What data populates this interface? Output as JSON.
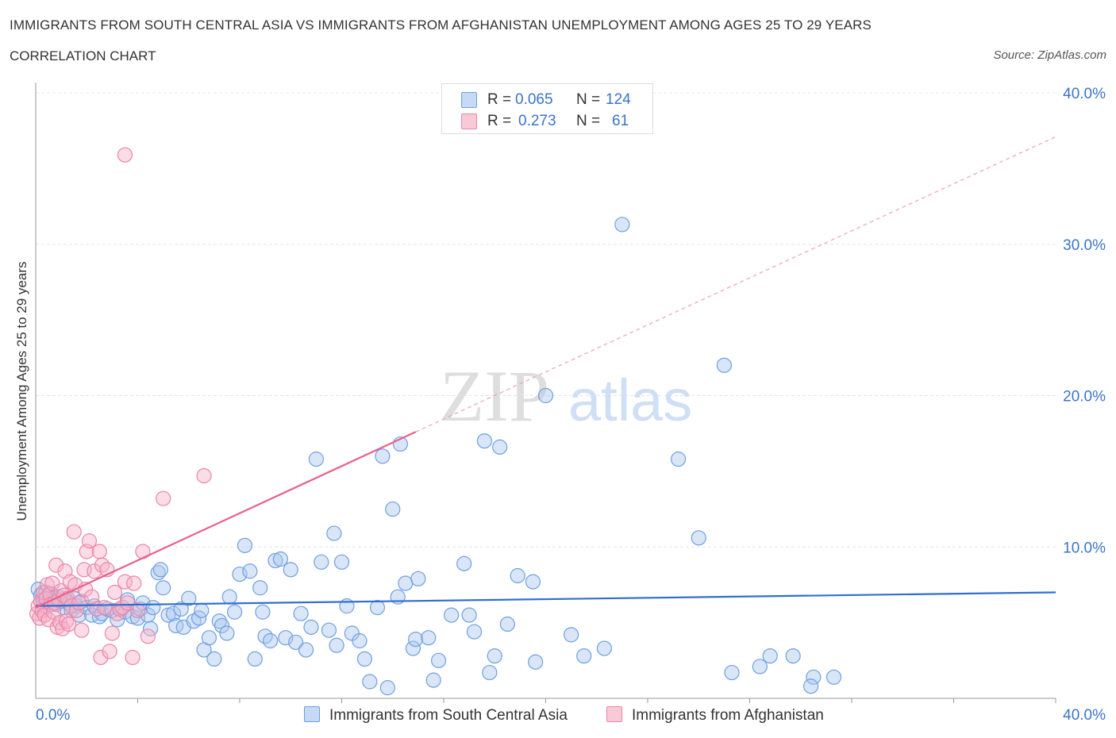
{
  "header": {
    "title": "IMMIGRANTS FROM SOUTH CENTRAL ASIA VS IMMIGRANTS FROM AFGHANISTAN UNEMPLOYMENT AMONG AGES 25 TO 29 YEARS",
    "subtitle": "CORRELATION CHART",
    "source": "Source: ZipAtlas.com"
  },
  "watermark": {
    "zip": "ZIP",
    "atlas": "atlas"
  },
  "legend": {
    "r_label": "R =",
    "n_label": "N =",
    "series": [
      {
        "name": "Immigrants from South Central Asia",
        "r": "0.065",
        "n": "124",
        "fill": "#c6d9f5",
        "stroke": "#6f9fe0"
      },
      {
        "name": "Immigrants from Afghanistan",
        "r": "0.273",
        "n": "61",
        "fill": "#f9c9d8",
        "stroke": "#ea86a6"
      }
    ]
  },
  "chart_data": {
    "type": "scatter",
    "title": "IMMIGRANTS FROM SOUTH CENTRAL ASIA VS IMMIGRANTS FROM AFGHANISTAN UNEMPLOYMENT AMONG AGES 25 TO 29 YEARS",
    "xlabel": "",
    "ylabel": "Unemployment Among Ages 25 to 29 years",
    "xlim": [
      0,
      40
    ],
    "ylim": [
      0,
      40
    ],
    "x_tick_labels": [
      "0.0%",
      "40.0%"
    ],
    "y_ticks": [
      10,
      20,
      30,
      40
    ],
    "y_tick_labels": [
      "10.0%",
      "20.0%",
      "30.0%",
      "40.0%"
    ],
    "grid": true,
    "series": [
      {
        "name": "Immigrants from South Central Asia",
        "color": "#6f9fe0",
        "trend": {
          "x": [
            0,
            40
          ],
          "y": [
            6.1,
            7.0
          ],
          "color": "#2f6fd0"
        },
        "points": [
          [
            0.1,
            7.2
          ],
          [
            0.2,
            6.8
          ],
          [
            0.3,
            6.5
          ],
          [
            0.4,
            7.0
          ],
          [
            0.5,
            6.3
          ],
          [
            0.6,
            6.9
          ],
          [
            0.7,
            6.6
          ],
          [
            0.8,
            6.2
          ],
          [
            0.9,
            6.7
          ],
          [
            1.0,
            6.4
          ],
          [
            1.1,
            6.0
          ],
          [
            1.2,
            6.5
          ],
          [
            1.3,
            6.3
          ],
          [
            1.4,
            5.8
          ],
          [
            1.5,
            6.6
          ],
          [
            1.6,
            6.1
          ],
          [
            1.7,
            5.5
          ],
          [
            1.8,
            6.4
          ],
          [
            2.0,
            6.0
          ],
          [
            2.2,
            5.5
          ],
          [
            2.3,
            6.1
          ],
          [
            2.5,
            5.4
          ],
          [
            2.6,
            5.6
          ],
          [
            2.8,
            5.9
          ],
          [
            3.0,
            5.8
          ],
          [
            3.2,
            5.2
          ],
          [
            3.3,
            5.9
          ],
          [
            3.5,
            5.7
          ],
          [
            3.6,
            6.5
          ],
          [
            3.8,
            5.4
          ],
          [
            4.0,
            5.3
          ],
          [
            4.1,
            5.9
          ],
          [
            4.2,
            6.3
          ],
          [
            4.4,
            5.5
          ],
          [
            4.5,
            4.6
          ],
          [
            4.6,
            6.0
          ],
          [
            4.8,
            8.3
          ],
          [
            4.9,
            8.5
          ],
          [
            5.0,
            7.3
          ],
          [
            5.2,
            5.5
          ],
          [
            5.4,
            5.6
          ],
          [
            5.5,
            4.8
          ],
          [
            5.7,
            5.9
          ],
          [
            5.8,
            4.7
          ],
          [
            6.0,
            6.6
          ],
          [
            6.2,
            5.1
          ],
          [
            6.4,
            5.3
          ],
          [
            6.5,
            5.8
          ],
          [
            6.6,
            3.2
          ],
          [
            6.8,
            4.0
          ],
          [
            7.0,
            2.6
          ],
          [
            7.2,
            5.1
          ],
          [
            7.3,
            4.8
          ],
          [
            7.5,
            4.3
          ],
          [
            7.6,
            6.7
          ],
          [
            7.8,
            5.7
          ],
          [
            8.0,
            8.2
          ],
          [
            8.2,
            10.1
          ],
          [
            8.4,
            8.4
          ],
          [
            8.6,
            2.6
          ],
          [
            8.8,
            7.3
          ],
          [
            8.9,
            5.7
          ],
          [
            9.0,
            4.1
          ],
          [
            9.2,
            3.8
          ],
          [
            9.4,
            9.1
          ],
          [
            9.6,
            9.2
          ],
          [
            9.8,
            4.0
          ],
          [
            10.0,
            8.5
          ],
          [
            10.2,
            3.7
          ],
          [
            10.4,
            5.6
          ],
          [
            10.6,
            3.2
          ],
          [
            10.8,
            4.7
          ],
          [
            11.0,
            15.8
          ],
          [
            11.2,
            9.0
          ],
          [
            11.5,
            4.5
          ],
          [
            11.7,
            10.9
          ],
          [
            11.8,
            3.5
          ],
          [
            12.0,
            9.0
          ],
          [
            12.2,
            6.1
          ],
          [
            12.4,
            4.3
          ],
          [
            12.7,
            3.8
          ],
          [
            12.9,
            2.6
          ],
          [
            13.1,
            1.1
          ],
          [
            13.4,
            6.0
          ],
          [
            13.6,
            16.0
          ],
          [
            13.8,
            0.7
          ],
          [
            14.0,
            12.5
          ],
          [
            14.2,
            6.7
          ],
          [
            14.3,
            16.8
          ],
          [
            14.5,
            7.6
          ],
          [
            14.8,
            3.3
          ],
          [
            14.9,
            3.9
          ],
          [
            15.0,
            7.9
          ],
          [
            15.4,
            4.0
          ],
          [
            15.6,
            1.2
          ],
          [
            15.8,
            2.5
          ],
          [
            16.3,
            5.5
          ],
          [
            16.8,
            8.9
          ],
          [
            17.0,
            5.5
          ],
          [
            17.2,
            4.4
          ],
          [
            17.6,
            17.0
          ],
          [
            17.8,
            1.7
          ],
          [
            18.0,
            2.8
          ],
          [
            18.2,
            16.6
          ],
          [
            18.5,
            4.9
          ],
          [
            18.9,
            8.1
          ],
          [
            19.5,
            7.7
          ],
          [
            19.6,
            2.4
          ],
          [
            20.0,
            20.0
          ],
          [
            21.0,
            4.2
          ],
          [
            21.5,
            2.8
          ],
          [
            22.3,
            3.3
          ],
          [
            23.0,
            31.3
          ],
          [
            25.2,
            15.8
          ],
          [
            26.0,
            10.6
          ],
          [
            27.0,
            22.0
          ],
          [
            27.3,
            1.7
          ],
          [
            28.4,
            2.1
          ],
          [
            28.8,
            2.8
          ],
          [
            29.7,
            2.8
          ],
          [
            30.5,
            1.4
          ],
          [
            30.4,
            0.8
          ],
          [
            31.3,
            1.4
          ],
          [
            0.3,
            6.1
          ]
        ]
      },
      {
        "name": "Immigrants from Afghanistan",
        "color": "#ea86a6",
        "trend": {
          "x": [
            0,
            14.9
          ],
          "y": [
            6.0,
            17.6
          ],
          "x_dashed_end": 40,
          "y_dashed_end": 37.1,
          "color": "#e8608a"
        },
        "points": [
          [
            0.05,
            5.6
          ],
          [
            0.1,
            6.1
          ],
          [
            0.15,
            5.3
          ],
          [
            0.2,
            6.4
          ],
          [
            0.25,
            5.8
          ],
          [
            0.3,
            7.0
          ],
          [
            0.35,
            5.5
          ],
          [
            0.4,
            6.6
          ],
          [
            0.45,
            7.5
          ],
          [
            0.5,
            5.2
          ],
          [
            0.55,
            6.9
          ],
          [
            0.6,
            6.2
          ],
          [
            0.65,
            7.6
          ],
          [
            0.7,
            5.7
          ],
          [
            0.75,
            6.3
          ],
          [
            0.8,
            8.8
          ],
          [
            0.85,
            4.7
          ],
          [
            0.9,
            6.5
          ],
          [
            0.95,
            5.0
          ],
          [
            1.0,
            7.1
          ],
          [
            1.05,
            4.6
          ],
          [
            1.1,
            6.8
          ],
          [
            1.15,
            8.4
          ],
          [
            1.2,
            5.1
          ],
          [
            1.25,
            6.6
          ],
          [
            1.3,
            4.9
          ],
          [
            1.35,
            7.7
          ],
          [
            1.4,
            6.1
          ],
          [
            1.5,
            11.0
          ],
          [
            1.55,
            7.5
          ],
          [
            1.6,
            5.8
          ],
          [
            1.7,
            6.3
          ],
          [
            1.8,
            4.5
          ],
          [
            1.9,
            8.5
          ],
          [
            1.95,
            7.2
          ],
          [
            2.0,
            9.7
          ],
          [
            2.1,
            10.4
          ],
          [
            2.2,
            6.7
          ],
          [
            2.3,
            8.4
          ],
          [
            2.4,
            5.9
          ],
          [
            2.5,
            9.7
          ],
          [
            2.55,
            2.7
          ],
          [
            2.6,
            8.8
          ],
          [
            2.7,
            6.0
          ],
          [
            2.8,
            8.5
          ],
          [
            2.9,
            3.1
          ],
          [
            3.0,
            4.3
          ],
          [
            3.1,
            7.0
          ],
          [
            3.2,
            5.6
          ],
          [
            3.3,
            5.9
          ],
          [
            3.4,
            6.0
          ],
          [
            3.5,
            7.7
          ],
          [
            3.6,
            6.3
          ],
          [
            3.8,
            2.7
          ],
          [
            3.85,
            7.6
          ],
          [
            4.0,
            5.8
          ],
          [
            4.2,
            9.7
          ],
          [
            4.4,
            4.1
          ],
          [
            5.0,
            13.2
          ],
          [
            6.6,
            14.7
          ],
          [
            3.5,
            35.9
          ]
        ]
      }
    ]
  }
}
